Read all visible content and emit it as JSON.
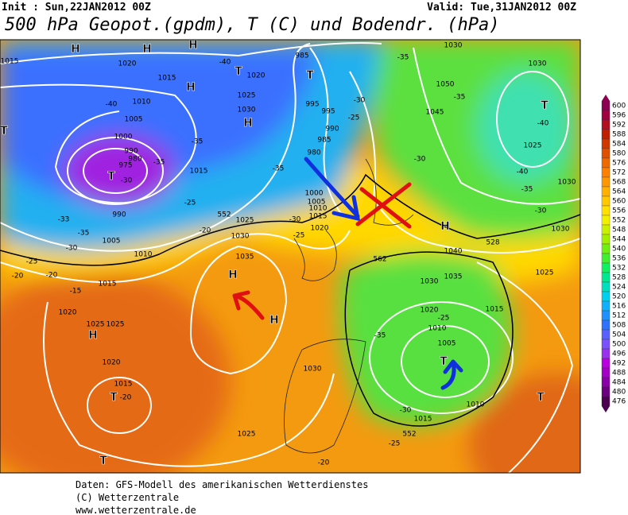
{
  "header": {
    "init": "Init : Sun,22JAN2012 00Z",
    "valid": "Valid: Tue,31JAN2012 00Z",
    "title": "500 hPa Geopot.(gpdm), T (C) und Bodendr. (hPa)"
  },
  "colorbar": {
    "values": [
      600,
      596,
      592,
      588,
      584,
      580,
      576,
      572,
      568,
      564,
      560,
      556,
      552,
      548,
      544,
      540,
      536,
      532,
      528,
      524,
      520,
      516,
      512,
      508,
      504,
      500,
      496,
      492,
      488,
      484,
      480,
      476
    ],
    "colors": [
      "#8c0050",
      "#a00040",
      "#b01020",
      "#c02000",
      "#d03800",
      "#e05000",
      "#f06800",
      "#ff8000",
      "#ff9800",
      "#ffb000",
      "#ffc800",
      "#ffe000",
      "#f0f000",
      "#c8f000",
      "#a0f000",
      "#70f010",
      "#40f030",
      "#10f060",
      "#00e890",
      "#00e0c0",
      "#00d0f0",
      "#10b0ff",
      "#2090ff",
      "#3070ff",
      "#5a60ff",
      "#7a50ff",
      "#9a30f0",
      "#b800e0",
      "#a400c8",
      "#8a00a8",
      "#6a0080",
      "#4b0050"
    ]
  },
  "map": {
    "labels": [
      "H",
      "H",
      "H",
      "H",
      "T",
      "T",
      "H",
      "T",
      "T",
      "T",
      "H",
      "H",
      "H",
      "T",
      "T",
      "T",
      "H",
      "T",
      "1015",
      "1020",
      "1015",
      "1010",
      "1005",
      "1000",
      "990",
      "980",
      "975",
      "1020",
      "1025",
      "1030",
      "985",
      "995",
      "995",
      "990",
      "985",
      "980",
      "1015",
      "1000",
      "1005",
      "1010",
      "1015",
      "1020",
      "1025",
      "1030",
      "1035",
      "1010",
      "1005",
      "990",
      "1015",
      "1020",
      "1025",
      "1025",
      "1020",
      "1015",
      "1025",
      "1030",
      "1040",
      "1030",
      "1035",
      "1025",
      "1020",
      "1015",
      "1010",
      "1005",
      "1010",
      "1015",
      "1050",
      "1045",
      "1030",
      "1025",
      "1030",
      "1030",
      "1030",
      "-40",
      "-40",
      "-35",
      "-35",
      "-30",
      "-25",
      "-33",
      "-35",
      "-30",
      "-25",
      "-20",
      "-15",
      "-20",
      "-20",
      "-25",
      "-30",
      "-35",
      "-30",
      "-25",
      "-35",
      "-35",
      "-30",
      "-40",
      "-40",
      "-35",
      "-30",
      "-25",
      "-35",
      "-30",
      "-25",
      "-20",
      "-20",
      "552",
      "562",
      "552",
      "528"
    ]
  },
  "footer": {
    "lines": [
      "Daten: GFS-Modell des amerikanischen Wetterdienstes",
      "(C) Wetterzentrale",
      "www.wetterzentrale.de"
    ]
  }
}
